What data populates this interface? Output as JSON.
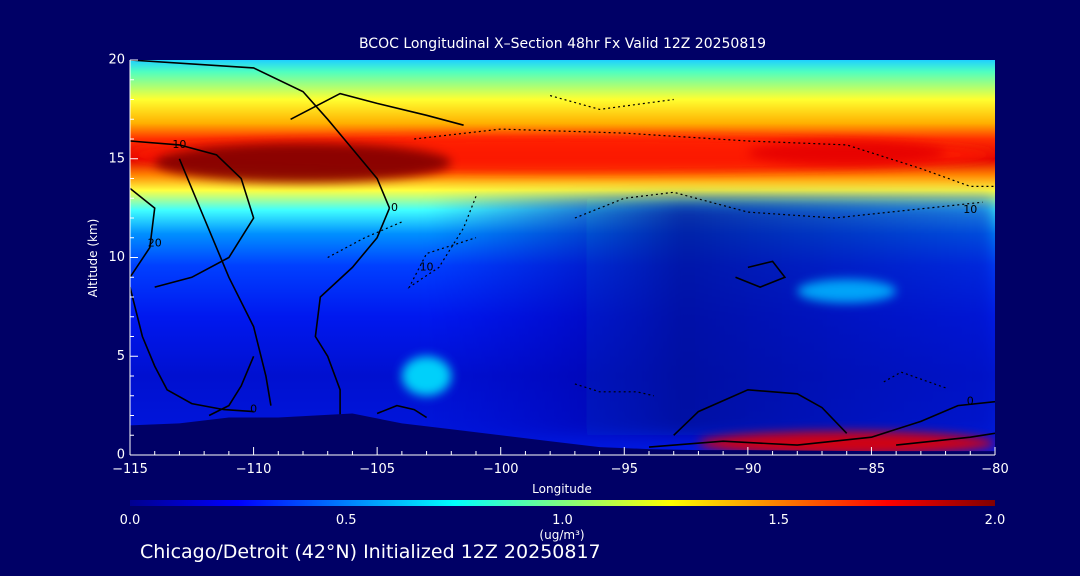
{
  "header": {
    "title": "BCOC Longitudinal X–Section 48hr  Fx Valid 12Z 20250819"
  },
  "footer": {
    "text": "Chicago/Detroit (42°N) Initialized 12Z 20250817"
  },
  "chart_data": {
    "type": "heatmap",
    "title": "BCOC Longitudinal X–Section 48hr  Fx Valid 12Z 20250819",
    "xlabel": "Longitude",
    "ylabel": "Altitude (km)",
    "xlim": [
      -115,
      -80
    ],
    "ylim": [
      0,
      20
    ],
    "xticks": [
      -115,
      -110,
      -105,
      -100,
      -95,
      -90,
      -85,
      -80
    ],
    "xtick_labels": [
      "−115",
      "−110",
      "−105",
      "−100",
      "−95",
      "−90",
      "−85",
      "−80"
    ],
    "yticks": [
      0,
      5,
      10,
      15,
      20
    ],
    "colorbar": {
      "label": "(ug/m³)",
      "range": [
        0.0,
        2.0
      ],
      "ticks": [
        "0.0",
        "0.5",
        "1.0",
        "1.5",
        "2.0"
      ],
      "colormap": "jet"
    },
    "heatmap_features": [
      {
        "lon_range": [
          -115,
          -80
        ],
        "alt_center": 15.2,
        "alt_half_width": 0.9,
        "value": 1.7
      },
      {
        "lon_range": [
          -114,
          -102
        ],
        "alt_center": 14.8,
        "alt_half_width": 1.0,
        "value": 2.0
      },
      {
        "lon_range": [
          -90,
          -82
        ],
        "alt_center": 15.3,
        "alt_half_width": 0.6,
        "value": 1.8
      },
      {
        "lon_range": [
          -92,
          -80
        ],
        "alt_center": 0.6,
        "alt_half_width": 0.6,
        "value": 1.8
      },
      {
        "lon_range": [
          -104,
          -102
        ],
        "alt_center": 4.0,
        "alt_half_width": 1.0,
        "value": 0.7
      },
      {
        "lon_range": [
          -88,
          -84
        ],
        "alt_center": 8.3,
        "alt_half_width": 0.6,
        "value": 0.6
      }
    ],
    "contour_labels": [
      {
        "text": "10",
        "lon": -113,
        "alt": 15.7
      },
      {
        "text": "20",
        "lon": -114,
        "alt": 10.7
      },
      {
        "text": "0",
        "lon": -104.3,
        "alt": 12.5
      },
      {
        "text": "10",
        "lon": -103,
        "alt": 9.5
      },
      {
        "text": "0",
        "lon": -110,
        "alt": 2.3
      },
      {
        "text": "10",
        "lon": -81,
        "alt": 12.4
      },
      {
        "text": "0",
        "lon": -81,
        "alt": 2.7
      }
    ],
    "terrain": [
      [
        -115,
        1.5
      ],
      [
        -113,
        1.6
      ],
      [
        -111,
        1.9
      ],
      [
        -109,
        1.9
      ],
      [
        -106,
        2.1
      ],
      [
        -104,
        1.6
      ],
      [
        -102,
        1.3
      ],
      [
        -100,
        1.0
      ],
      [
        -98,
        0.7
      ],
      [
        -96,
        0.4
      ],
      [
        -94,
        0.3
      ],
      [
        -92,
        0.25
      ],
      [
        -90,
        0.25
      ],
      [
        -85,
        0.2
      ],
      [
        -80,
        0.2
      ]
    ]
  }
}
